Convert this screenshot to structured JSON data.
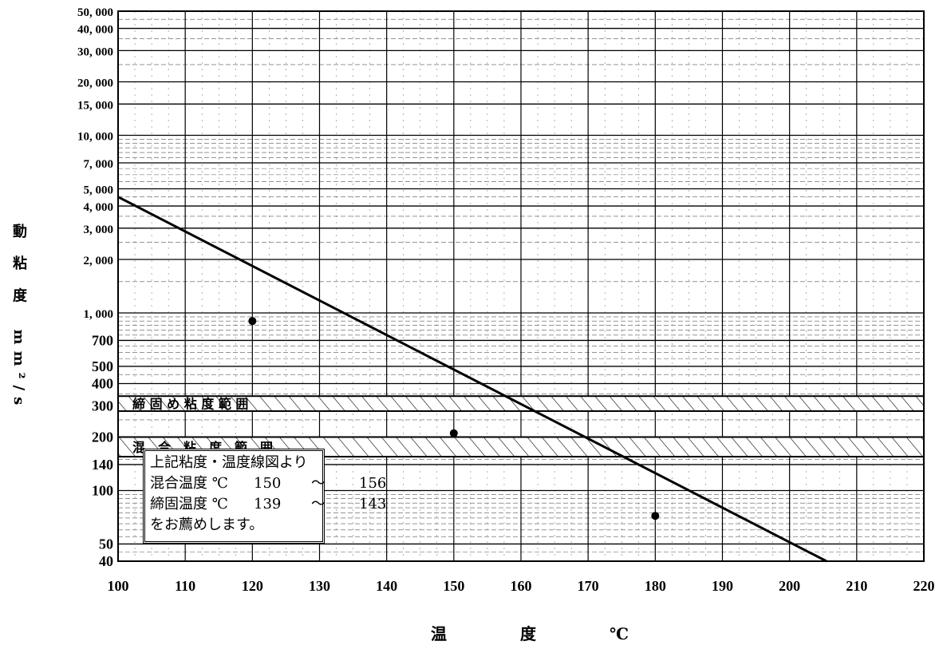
{
  "chart_data": {
    "type": "line",
    "title": "",
    "xlabel": "温　度　℃",
    "ylabel": "動 粘 度　mm²/s",
    "y_scale": "log",
    "xlim": [
      100,
      220
    ],
    "ylim": [
      40,
      50000
    ],
    "x_ticks": [
      "100",
      "110",
      "120",
      "130",
      "140",
      "150",
      "160",
      "170",
      "180",
      "190",
      "200",
      "210",
      "220"
    ],
    "y_ticks": [
      "50, 000",
      "40, 000",
      "30, 000",
      "20, 000",
      "15, 000",
      "10, 000",
      "7, 000",
      "5, 000",
      "4, 000",
      "3, 000",
      "2, 000",
      "1, 000",
      "700",
      "500",
      "400",
      "300",
      "200",
      "140",
      "100",
      "50",
      "40"
    ],
    "series": [
      {
        "x": [
          100,
          205.5
        ],
        "y": [
          4500,
          40
        ]
      }
    ],
    "points": [
      {
        "x": 120,
        "y": 900
      },
      {
        "x": 150,
        "y": 210
      },
      {
        "x": 180,
        "y": 72
      }
    ],
    "bands": [
      {
        "label": "締 固 め 粘 度 範 囲",
        "y_low": 280,
        "y_high": 340
      },
      {
        "label": "混　合　粘　度　範　囲",
        "y_low": 155,
        "y_high": 200
      }
    ],
    "grid": true
  },
  "note": {
    "line1": "上記粘度・温度線図より",
    "line2_label": "混合温度 ℃",
    "line2_from": "150",
    "line2_sep": "〜",
    "line2_to": "156",
    "line3_label": "締固温度 ℃",
    "line3_from": "139",
    "line3_sep": "〜",
    "line3_to": "143",
    "line4": "をお薦めします。"
  }
}
